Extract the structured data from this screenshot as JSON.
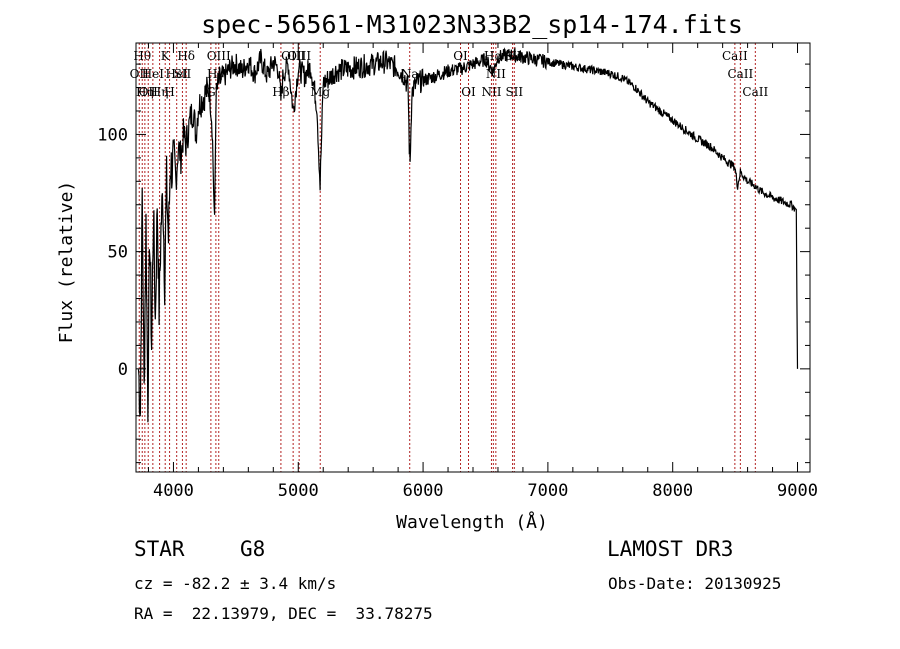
{
  "chart_data": {
    "type": "line",
    "title": "spec-56561-M31023N33B2_sp14-174.fits",
    "xlabel": "Wavelength (Å)",
    "ylabel": "Flux (relative)",
    "xlim": [
      3700,
      9100
    ],
    "ylim": [
      -44,
      139
    ],
    "xticks": [
      4000,
      5000,
      6000,
      7000,
      8000,
      9000
    ],
    "xtick_labels": [
      "4000",
      "5000",
      "6000",
      "7000",
      "8000",
      "9000"
    ],
    "yticks": [
      0,
      50,
      100
    ],
    "ytick_labels": [
      "0",
      "50",
      "100"
    ],
    "series": [
      {
        "name": "spectrum",
        "x": [
          3720,
          3735,
          3750,
          3765,
          3780,
          3795,
          3810,
          3825,
          3840,
          3855,
          3870,
          3885,
          3900,
          3915,
          3930,
          3945,
          3960,
          3975,
          3990,
          4005,
          4020,
          4040,
          4060,
          4080,
          4100,
          4120,
          4140,
          4160,
          4180,
          4200,
          4230,
          4260,
          4290,
          4310,
          4330,
          4340,
          4360,
          4400,
          4450,
          4500,
          4550,
          4600,
          4650,
          4700,
          4750,
          4800,
          4840,
          4861,
          4880,
          4920,
          4960,
          5000,
          5050,
          5100,
          5150,
          5175,
          5200,
          5250,
          5300,
          5400,
          5500,
          5600,
          5700,
          5800,
          5850,
          5880,
          5890,
          5896,
          5910,
          5950,
          6000,
          6100,
          6200,
          6300,
          6400,
          6500,
          6563,
          6600,
          6700,
          6800,
          6900,
          7000,
          7100,
          7200,
          7300,
          7400,
          7500,
          7600,
          7700,
          7800,
          7900,
          8000,
          8100,
          8200,
          8300,
          8400,
          8498,
          8520,
          8542,
          8600,
          8662,
          8700,
          8800,
          8900,
          8950,
          8990,
          8995,
          9000
        ],
        "values": [
          0,
          -18,
          75,
          -10,
          62,
          -15,
          58,
          10,
          68,
          20,
          72,
          25,
          60,
          75,
          38,
          80,
          55,
          88,
          85,
          92,
          80,
          95,
          90,
          100,
          96,
          102,
          108,
          110,
          100,
          112,
          115,
          118,
          120,
          105,
          60,
          115,
          122,
          124,
          128,
          130,
          127,
          131,
          126,
          132,
          125,
          131,
          128,
          115,
          126,
          130,
          110,
          128,
          125,
          129,
          112,
          78,
          122,
          124,
          127,
          128,
          129,
          130,
          131,
          128,
          125,
          120,
          95,
          88,
          118,
          122,
          123,
          125,
          127,
          128,
          130,
          132,
          127,
          133,
          134,
          133,
          132,
          131,
          130,
          129,
          128,
          127,
          126,
          124,
          120,
          114,
          110,
          106,
          102,
          98,
          95,
          90,
          86,
          78,
          84,
          80,
          78,
          76,
          73,
          71,
          70,
          68,
          30,
          0
        ]
      }
    ],
    "lines": [
      {
        "x": 3726,
        "label": "OII",
        "row": 1
      },
      {
        "x": 3750,
        "label": "Hθ",
        "row": 0
      },
      {
        "x": 3771,
        "label": "Hη",
        "row": 2
      },
      {
        "x": 3798,
        "label": "OII",
        "row": 2
      },
      {
        "x": 3835,
        "label": "HeI",
        "row": 1
      },
      {
        "x": 3889,
        "label": "Hη",
        "row": 2
      },
      {
        "x": 3934,
        "label": "K",
        "row": 0
      },
      {
        "x": 3969,
        "label": "H",
        "row": 2
      },
      {
        "x": 4026,
        "label": "HeI",
        "row": 1
      },
      {
        "x": 4072,
        "label": "SII",
        "row": 1
      },
      {
        "x": 4102,
        "label": "Hδ",
        "row": 0
      },
      {
        "x": 4300,
        "label": "G",
        "row": 2
      },
      {
        "x": 4340,
        "label": "Hγ",
        "row": 1
      },
      {
        "x": 4363,
        "label": "OIII",
        "row": 0
      },
      {
        "x": 4861,
        "label": "Hβ",
        "row": 2
      },
      {
        "x": 4959,
        "label": "OIII",
        "row": 0
      },
      {
        "x": 5007,
        "label": "OIII",
        "row": 0
      },
      {
        "x": 5176,
        "label": "Mg",
        "row": 2
      },
      {
        "x": 5893,
        "label": "Na",
        "row": 1
      },
      {
        "x": 6300,
        "label": "OI",
        "row": 0
      },
      {
        "x": 6364,
        "label": "OI",
        "row": 2
      },
      {
        "x": 6548,
        "label": "NII",
        "row": 2
      },
      {
        "x": 6563,
        "label": "Hα",
        "row": 0
      },
      {
        "x": 6583,
        "label": "NII",
        "row": 1
      },
      {
        "x": 6717,
        "label": "SII",
        "row": 0
      },
      {
        "x": 6731,
        "label": "SII",
        "row": 2
      },
      {
        "x": 8498,
        "label": "CaII",
        "row": 0
      },
      {
        "x": 8542,
        "label": "CaII",
        "row": 1
      },
      {
        "x": 8662,
        "label": "CaII",
        "row": 2
      }
    ]
  },
  "footer": {
    "object_class": "STAR",
    "subclass": "G8",
    "survey": "LAMOST DR3",
    "cz": "cz = -82.2 ± 3.4 km/s",
    "obs_date": "Obs-Date: 20130925",
    "coords": "RA =  22.13979, DEC =  33.78275"
  },
  "colors": {
    "line_marker": "#b22222",
    "spectrum": "#000000",
    "axes": "#000000"
  }
}
